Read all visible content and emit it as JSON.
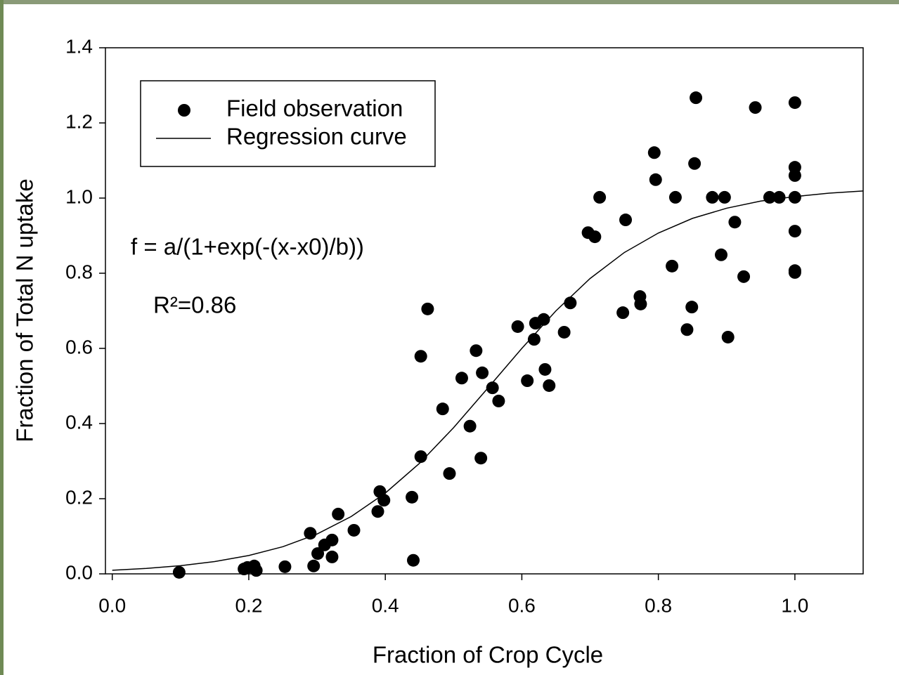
{
  "chart_data": {
    "type": "scatter",
    "x_label": "Fraction of Crop Cycle",
    "y_label": "Fraction of Total N uptake",
    "annotations": [
      "f = a/(1+exp(-(x-x0)/b))",
      "R²=0.86"
    ],
    "legend": "upper left",
    "xlim": [
      -0.01,
      1.1
    ],
    "ylim": [
      0,
      1.4
    ],
    "xticks": [
      {
        "value": 0,
        "label": "0.0"
      },
      0.2,
      0.4,
      0.6,
      0.8,
      {
        "value": 1,
        "label": "1.0"
      }
    ],
    "yticks": [
      {
        "value": 0,
        "label": "0.0"
      },
      0.2,
      0.4,
      0.6,
      0.8,
      {
        "value": 1,
        "label": "1.0"
      },
      1.2,
      1.4
    ],
    "series": [
      {
        "name": "Field observation",
        "type": "scatter",
        "color": "#000000",
        "x": [
          0.098,
          0.193,
          0.198,
          0.208,
          0.211,
          0.253,
          0.29,
          0.295,
          0.301,
          0.311,
          0.322,
          0.322,
          0.331,
          0.354,
          0.389,
          0.392,
          0.398,
          0.439,
          0.441,
          0.452,
          0.452,
          0.462,
          0.484,
          0.494,
          0.512,
          0.524,
          0.533,
          0.54,
          0.542,
          0.557,
          0.566,
          0.594,
          0.608,
          0.618,
          0.62,
          0.632,
          0.634,
          0.64,
          0.662,
          0.671,
          0.697,
          0.707,
          0.714,
          0.748,
          0.752,
          0.773,
          0.774,
          0.794,
          0.796,
          0.82,
          0.825,
          0.842,
          0.849,
          0.853,
          0.855,
          0.879,
          0.892,
          0.897,
          0.902,
          0.912,
          0.925,
          0.942,
          0.963,
          0.977,
          1.0,
          1.0,
          1.0,
          1.0,
          1.0,
          1.0,
          1.0
        ],
        "values": [
          0.004,
          0.013,
          0.017,
          0.021,
          0.009,
          0.019,
          0.108,
          0.021,
          0.054,
          0.077,
          0.09,
          0.045,
          0.159,
          0.116,
          0.166,
          0.219,
          0.196,
          0.204,
          0.036,
          0.312,
          0.579,
          0.705,
          0.439,
          0.267,
          0.521,
          0.393,
          0.594,
          0.308,
          0.535,
          0.495,
          0.46,
          0.658,
          0.514,
          0.624,
          0.667,
          0.677,
          0.544,
          0.501,
          0.643,
          0.721,
          0.908,
          0.897,
          1.002,
          0.695,
          0.942,
          0.738,
          0.718,
          1.121,
          1.049,
          0.819,
          1.002,
          0.65,
          0.71,
          1.092,
          1.267,
          1.002,
          0.849,
          1.002,
          0.63,
          0.936,
          0.791,
          1.241,
          1.002,
          1.002,
          1.254,
          1.082,
          1.06,
          1.002,
          0.912,
          0.807,
          0.802
        ]
      },
      {
        "name": "Regression curve",
        "type": "line",
        "color": "#000000",
        "x": [
          0,
          0.05,
          0.1,
          0.15,
          0.2,
          0.25,
          0.3,
          0.35,
          0.4,
          0.45,
          0.5,
          0.55,
          0.6,
          0.65,
          0.7,
          0.75,
          0.8,
          0.85,
          0.9,
          0.95,
          1.0,
          1.05,
          1.1
        ],
        "values": [
          0.0096,
          0.0145,
          0.0218,
          0.0327,
          0.0488,
          0.0723,
          0.1059,
          0.1526,
          0.215,
          0.294,
          0.389,
          0.494,
          0.6,
          0.7,
          0.786,
          0.855,
          0.907,
          0.946,
          0.973,
          0.992,
          1.004,
          1.013,
          1.019
        ]
      }
    ]
  }
}
